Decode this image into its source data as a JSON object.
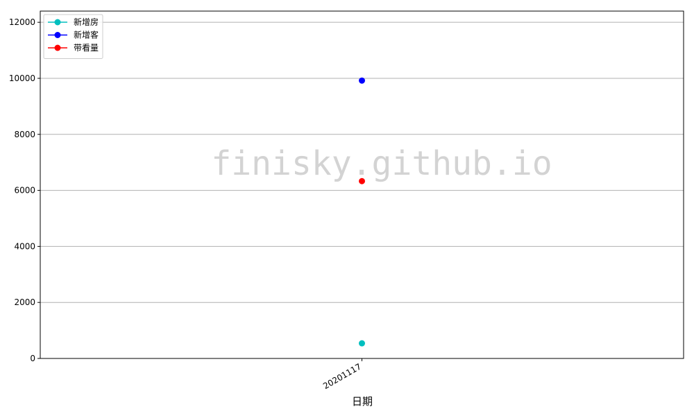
{
  "chart_data": {
    "type": "line",
    "title": "",
    "xlabel": "日期",
    "ylabel": "",
    "categories": [
      "20201117"
    ],
    "series": [
      {
        "name": "新增房",
        "values": [
          540
        ],
        "color": "#00bfbf"
      },
      {
        "name": "新增客",
        "values": [
          9920
        ],
        "color": "#0000ff"
      },
      {
        "name": "带看量",
        "values": [
          6330
        ],
        "color": "#ff0000"
      }
    ],
    "ylim": [
      0,
      12400
    ],
    "yticks": [
      0,
      2000,
      4000,
      6000,
      8000,
      10000,
      12000
    ],
    "grid": "y",
    "legend": "top-left",
    "watermark": "finisky.github.io"
  }
}
